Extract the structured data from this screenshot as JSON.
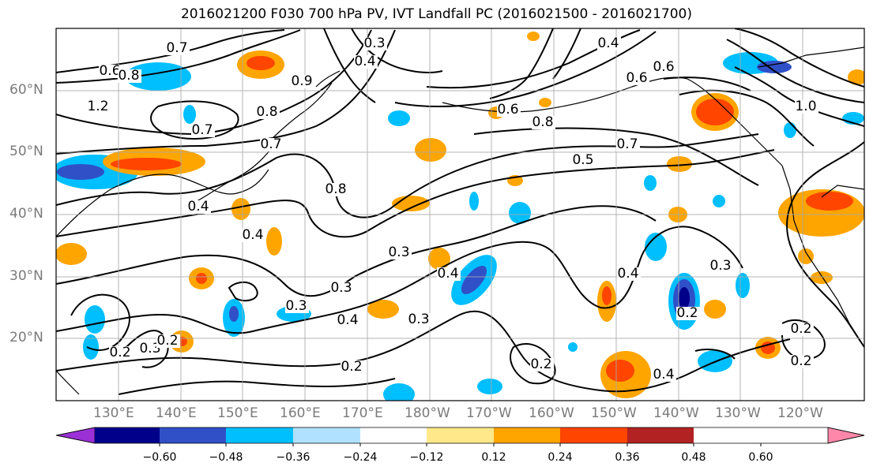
{
  "title": "2016021200 F030 700 hPa PV, IVT Landfall PC (2016021500 - 2016021700)",
  "lat_labels": [
    "60°N",
    "50°N",
    "40°N",
    "30°N",
    "20°N"
  ],
  "lon_labels": [
    "130°E",
    "140°E",
    "150°E",
    "160°E",
    "170°E",
    "180°W",
    "170°W",
    "160°W",
    "150°W",
    "140°W",
    "130°W",
    "120°W"
  ],
  "contour_labels": [
    "0.7",
    "0.6",
    "0.8",
    "1.2",
    "0.9",
    "0.8",
    "0.7",
    "0.4",
    "0.8",
    "0.7",
    "0.4",
    "0.4",
    "0.3",
    "0.3",
    "0.3",
    "0.4",
    "0.2",
    "0.3",
    "0.2",
    "0.2",
    "0.3",
    "0.4",
    "0.4",
    "0.2",
    "0.5",
    "0.7",
    "0.6",
    "0.8",
    "0.6",
    "0.4",
    "0.3",
    "0.2",
    "0.2",
    "0.2",
    "0.3",
    "0.4",
    "1.0",
    "0.6"
  ],
  "colorbar": {
    "ticks": [
      "−0.60",
      "−0.48",
      "−0.36",
      "−0.24",
      "−0.12",
      "0.12",
      "0.24",
      "0.36",
      "0.48",
      "0.60"
    ],
    "colors": [
      "#9b30d6",
      "#00008b",
      "#3050c8",
      "#00bfff",
      "#b0e2ff",
      "#ffffff",
      "#ffe88a",
      "#ffa500",
      "#ff4500",
      "#b22222",
      "#ff88aa"
    ]
  }
}
